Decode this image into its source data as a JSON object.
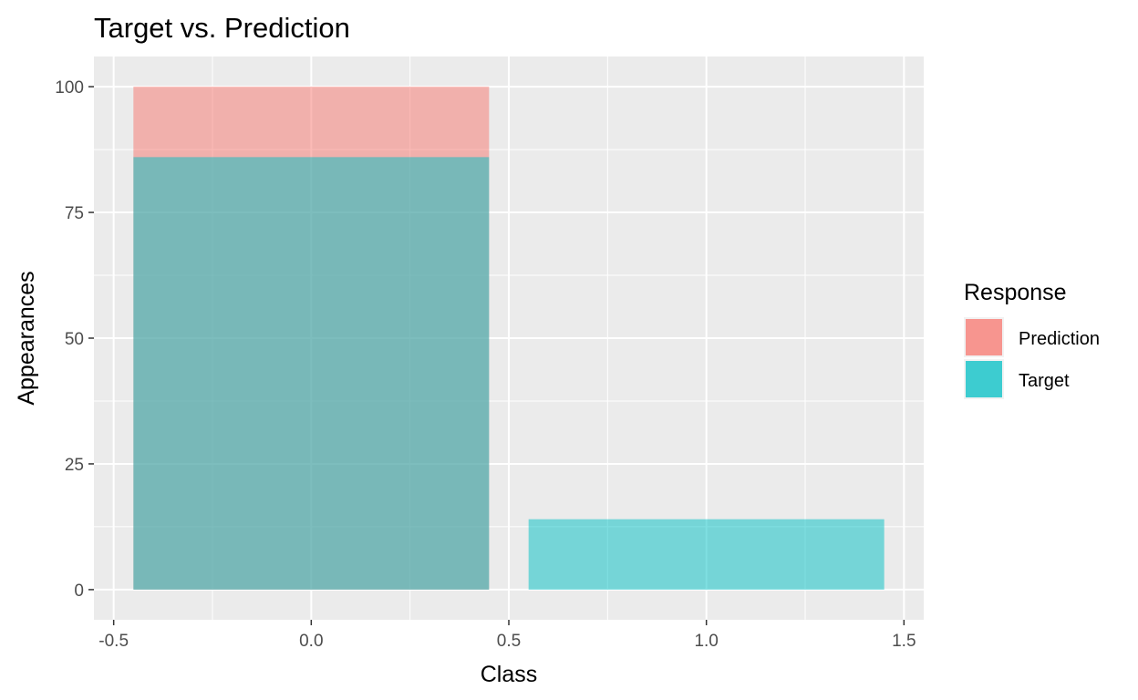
{
  "chart_data": {
    "type": "bar",
    "title": "Target vs. Prediction",
    "xlabel": "Class",
    "ylabel": "Appearances",
    "xlim": [
      -0.55,
      1.55
    ],
    "ylim": [
      -6,
      106
    ],
    "x_ticks": [
      -0.5,
      0.0,
      0.5,
      1.0,
      1.5
    ],
    "x_tick_labels": [
      "-0.5",
      "0.0",
      "0.5",
      "1.0",
      "1.5"
    ],
    "y_ticks": [
      0,
      25,
      50,
      75,
      100
    ],
    "y_tick_labels": [
      "0",
      "25",
      "50",
      "75",
      "100"
    ],
    "bar_width": 0.9,
    "grid": true,
    "panel_background": "#ebebeb",
    "legend": {
      "title": "Response",
      "position": "right",
      "entries": [
        {
          "label": "Prediction",
          "color": "#f8766d"
        },
        {
          "label": "Target",
          "color": "#00bfc4"
        }
      ]
    },
    "series": [
      {
        "name": "Prediction",
        "color": "#f8766d",
        "opacity": 0.5,
        "x": [
          0
        ],
        "values": [
          100
        ]
      },
      {
        "name": "Target",
        "color": "#00bfc4",
        "opacity": 0.5,
        "x": [
          0,
          1
        ],
        "values": [
          86,
          14
        ]
      }
    ]
  }
}
